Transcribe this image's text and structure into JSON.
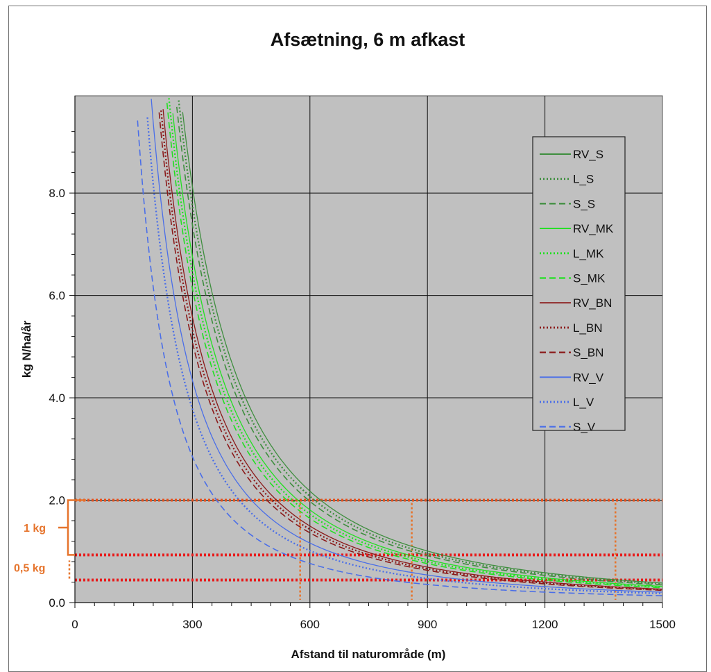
{
  "chart_data": {
    "type": "line",
    "title": "Afsætning, 6 m afkast",
    "xlabel": "Afstand til naturområde (m)",
    "ylabel": "kg N/ha/år",
    "xlim": [
      0,
      1500
    ],
    "ylim": [
      0,
      9.9
    ],
    "x_ticks": [
      "0",
      "300",
      "600",
      "900",
      "1200",
      "1500"
    ],
    "y_ticks": [
      "0.0",
      "2.0",
      "4.0",
      "6.0",
      "8.0"
    ],
    "grid": true,
    "legend_position": "top-right",
    "model": "power-law y = a * x^-1.9 (a = value at x=100 m)",
    "series": [
      {
        "name": "RV_S",
        "color": "#3e8e3e",
        "dash": "solid",
        "a": 65.5
      },
      {
        "name": "L_S",
        "color": "#3e8e3e",
        "dash": "dotted",
        "a": 62.5
      },
      {
        "name": "S_S",
        "color": "#3e8e3e",
        "dash": "dashed",
        "a": 59.5
      },
      {
        "name": "RV_MK",
        "color": "#22e022",
        "dash": "solid",
        "a": 54.5
      },
      {
        "name": "L_MK",
        "color": "#22e022",
        "dash": "dotted",
        "a": 52.0
      },
      {
        "name": "S_MK",
        "color": "#22e022",
        "dash": "dashed",
        "a": 49.5
      },
      {
        "name": "RV_BN",
        "color": "#8b1a1a",
        "dash": "solid",
        "a": 45.0
      },
      {
        "name": "L_BN",
        "color": "#8b1a1a",
        "dash": "dotted",
        "a": 43.0
      },
      {
        "name": "S_BN",
        "color": "#8b1a1a",
        "dash": "dashed",
        "a": 41.0
      },
      {
        "name": "RV_V",
        "color": "#4a6ee8",
        "dash": "solid",
        "a": 35.0
      },
      {
        "name": "L_V",
        "color": "#4a6ee8",
        "dash": "dotted",
        "a": 30.5
      },
      {
        "name": "S_V",
        "color": "#4a6ee8",
        "dash": "dashed",
        "a": 23.0
      }
    ],
    "reference_lines": [
      {
        "y": 2.0,
        "color": "#e8501c"
      },
      {
        "y": 0.93,
        "color": "#e81c1c"
      },
      {
        "y": 0.44,
        "color": "#e81c1c"
      }
    ],
    "reference_markers_x": [
      575,
      860,
      1380
    ],
    "annotations": [
      {
        "text": "1 kg",
        "y_from": 0.93,
        "y_to": 2.0
      },
      {
        "text": "0,5 kg",
        "y_from": 0.44,
        "y_to": 0.93
      }
    ]
  }
}
